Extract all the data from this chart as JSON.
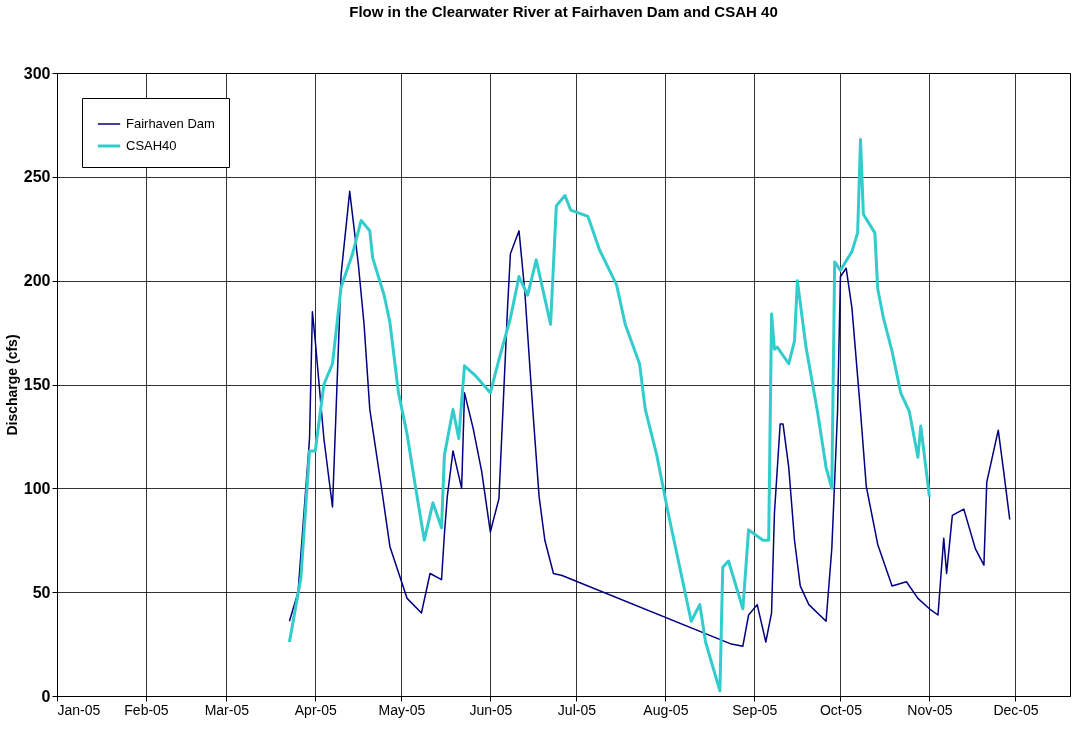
{
  "chart_data": {
    "type": "line",
    "title": "Flow in the Clearwater River at Fairhaven Dam and CSAH 40",
    "ylabel": "Discharge (cfs)",
    "xlim": [
      "2005-01-01",
      "2005-12-20"
    ],
    "xticks": [
      {
        "value": "2005-01-01",
        "label": "Jan-05"
      },
      {
        "value": "2005-02-01",
        "label": "Feb-05"
      },
      {
        "value": "2005-03-01",
        "label": "Mar-05"
      },
      {
        "value": "2005-04-01",
        "label": "Apr-05"
      },
      {
        "value": "2005-05-01",
        "label": "May-05"
      },
      {
        "value": "2005-06-01",
        "label": "Jun-05"
      },
      {
        "value": "2005-07-01",
        "label": "Jul-05"
      },
      {
        "value": "2005-08-01",
        "label": "Aug-05"
      },
      {
        "value": "2005-09-01",
        "label": "Sep-05"
      },
      {
        "value": "2005-10-01",
        "label": "Oct-05"
      },
      {
        "value": "2005-11-01",
        "label": "Nov-05"
      },
      {
        "value": "2005-12-01",
        "label": "Dec-05"
      }
    ],
    "ylim": [
      0,
      300
    ],
    "yticks": [
      0,
      50,
      100,
      150,
      200,
      250,
      300
    ],
    "grid": true,
    "legend": "top left",
    "marker": "none",
    "line_style": "solid",
    "series": [
      {
        "name": "Fairhaven Dam",
        "color": "#000080",
        "x": [
          "2005-03-23",
          "2005-03-26",
          "2005-03-30",
          "2005-03-31",
          "2005-04-01",
          "2005-04-04",
          "2005-04-07",
          "2005-04-10",
          "2005-04-13",
          "2005-04-16",
          "2005-04-18",
          "2005-04-20",
          "2005-04-24",
          "2005-04-27",
          "2005-05-03",
          "2005-05-08",
          "2005-05-11",
          "2005-05-15",
          "2005-05-16",
          "2005-05-17",
          "2005-05-19",
          "2005-05-22",
          "2005-05-23",
          "2005-05-26",
          "2005-05-29",
          "2005-06-01",
          "2005-06-04",
          "2005-06-07",
          "2005-06-08",
          "2005-06-11",
          "2005-06-13",
          "2005-06-15",
          "2005-06-16",
          "2005-06-18",
          "2005-06-20",
          "2005-06-23",
          "2005-06-26",
          "2005-08-24",
          "2005-08-28",
          "2005-08-30",
          "2005-09-02",
          "2005-09-05",
          "2005-09-07",
          "2005-09-08",
          "2005-09-10",
          "2005-09-11",
          "2005-09-13",
          "2005-09-15",
          "2005-09-17",
          "2005-09-20",
          "2005-09-26",
          "2005-09-28",
          "2005-09-30",
          "2005-10-01",
          "2005-10-03",
          "2005-10-05",
          "2005-10-08",
          "2005-10-10",
          "2005-10-14",
          "2005-10-19",
          "2005-10-24",
          "2005-10-28",
          "2005-11-01",
          "2005-11-04",
          "2005-11-06",
          "2005-11-07",
          "2005-11-09",
          "2005-11-13",
          "2005-11-17",
          "2005-11-20",
          "2005-11-21",
          "2005-11-25",
          "2005-11-27",
          "2005-11-29"
        ],
        "values": [
          36,
          50,
          124,
          185,
          171,
          124,
          91,
          203,
          243,
          208,
          179,
          138,
          101,
          72,
          47,
          40,
          59,
          56,
          78,
          96,
          118,
          100,
          146,
          129,
          108,
          79,
          95,
          187,
          213,
          224,
          195,
          154,
          134,
          96,
          75,
          59,
          58,
          25,
          24,
          39,
          44,
          26,
          40,
          88,
          131,
          131,
          110,
          75,
          53,
          44,
          36,
          71,
          137,
          202,
          206,
          187,
          137,
          101,
          73,
          53,
          55,
          47,
          42,
          39,
          76,
          59,
          87,
          90,
          71,
          63,
          103,
          128,
          107,
          85
        ]
      },
      {
        "name": "CSAH40",
        "color": "#33cccc",
        "x": [
          "2005-03-23",
          "2005-03-27",
          "2005-03-30",
          "2005-04-01",
          "2005-04-04",
          "2005-04-07",
          "2005-04-10",
          "2005-04-14",
          "2005-04-17",
          "2005-04-20",
          "2005-04-21",
          "2005-04-25",
          "2005-04-27",
          "2005-04-30",
          "2005-05-03",
          "2005-05-06",
          "2005-05-09",
          "2005-05-12",
          "2005-05-15",
          "2005-05-16",
          "2005-05-19",
          "2005-05-21",
          "2005-05-23",
          "2005-05-27",
          "2005-06-01",
          "2005-06-04",
          "2005-06-08",
          "2005-06-11",
          "2005-06-14",
          "2005-06-17",
          "2005-06-22",
          "2005-06-24",
          "2005-06-27",
          "2005-06-29",
          "2005-07-05",
          "2005-07-09",
          "2005-07-15",
          "2005-07-18",
          "2005-07-23",
          "2005-07-25",
          "2005-07-29",
          "2005-08-02",
          "2005-08-06",
          "2005-08-10",
          "2005-08-13",
          "2005-08-15",
          "2005-08-20",
          "2005-08-21",
          "2005-08-23",
          "2005-08-28",
          "2005-08-30",
          "2005-09-04",
          "2005-09-06",
          "2005-09-07",
          "2005-09-08",
          "2005-09-09",
          "2005-09-13",
          "2005-09-15",
          "2005-09-16",
          "2005-09-19",
          "2005-09-23",
          "2005-09-26",
          "2005-09-28",
          "2005-09-29",
          "2005-10-01",
          "2005-10-05",
          "2005-10-07",
          "2005-10-08",
          "2005-10-09",
          "2005-10-13",
          "2005-10-14",
          "2005-10-16",
          "2005-10-19",
          "2005-10-22",
          "2005-10-25",
          "2005-10-28",
          "2005-10-29",
          "2005-11-01"
        ],
        "values": [
          26,
          57,
          118,
          118,
          150,
          160,
          197,
          213,
          229,
          224,
          211,
          193,
          180,
          146,
          126,
          100,
          75,
          93,
          81,
          116,
          138,
          124,
          159,
          154,
          146,
          162,
          182,
          202,
          193,
          210,
          179,
          236,
          241,
          234,
          231,
          215,
          198,
          179,
          160,
          138,
          116,
          88,
          62,
          36,
          44,
          26,
          2.5,
          62,
          65,
          42,
          80,
          75,
          75,
          184,
          167,
          168,
          160,
          171,
          200,
          168,
          137,
          110,
          100,
          209,
          205,
          214,
          223,
          268,
          232,
          223,
          196,
          182,
          166,
          146,
          137,
          115,
          130,
          96
        ]
      }
    ]
  }
}
